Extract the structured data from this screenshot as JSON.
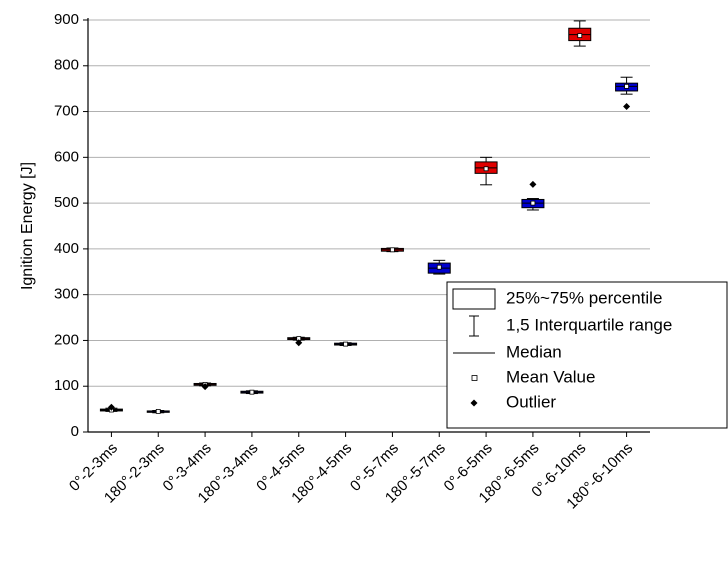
{
  "chart_data": {
    "type": "box",
    "y_label": "Ignition Energy [J]",
    "categories": [
      "0°-2-3ms",
      "180°-2-3ms",
      "0°-3-4ms",
      "180°-3-4ms",
      "0°-4-5ms",
      "180°-4-5ms",
      "0°-5-7ms",
      "180°-5-7ms",
      "0°-6-5ms",
      "180°-6-5ms",
      "0°-6-10ms",
      "180°-6-10ms"
    ],
    "colors": [
      "#e00000",
      "#0000d0",
      "#e00000",
      "#0000d0",
      "#e00000",
      "#0000d0",
      "#e00000",
      "#0000d0",
      "#e00000",
      "#0000d0",
      "#e00000",
      "#0000d0"
    ],
    "boxes": [
      {
        "whisker_low": 45,
        "q1": 46,
        "median": 48,
        "q3": 50,
        "whisker_high": 52,
        "mean": 48,
        "outliers": [
          54
        ]
      },
      {
        "whisker_low": 42,
        "q1": 43,
        "median": 45,
        "q3": 46,
        "whisker_high": 47,
        "mean": 45,
        "outliers": []
      },
      {
        "whisker_low": 101,
        "q1": 102,
        "median": 104,
        "q3": 106,
        "whisker_high": 107,
        "mean": 104,
        "outliers": [
          99
        ]
      },
      {
        "whisker_low": 84,
        "q1": 85,
        "median": 87,
        "q3": 89,
        "whisker_high": 90,
        "mean": 87,
        "outliers": []
      },
      {
        "whisker_low": 201,
        "q1": 202,
        "median": 204,
        "q3": 206,
        "whisker_high": 207,
        "mean": 204,
        "outliers": [
          195
        ]
      },
      {
        "whisker_low": 189,
        "q1": 190,
        "median": 192,
        "q3": 194,
        "whisker_high": 195,
        "mean": 192,
        "outliers": []
      },
      {
        "whisker_low": 394,
        "q1": 395,
        "median": 398,
        "q3": 401,
        "whisker_high": 402,
        "mean": 398,
        "outliers": []
      },
      {
        "whisker_low": 345,
        "q1": 347,
        "median": 358,
        "q3": 369,
        "whisker_high": 375,
        "mean": 360,
        "outliers": []
      },
      {
        "whisker_low": 540,
        "q1": 565,
        "median": 577,
        "q3": 590,
        "whisker_high": 600,
        "mean": 575,
        "outliers": []
      },
      {
        "whisker_low": 485,
        "q1": 490,
        "median": 500,
        "q3": 508,
        "whisker_high": 510,
        "mean": 500,
        "outliers": [
          541
        ]
      },
      {
        "whisker_low": 843,
        "q1": 855,
        "median": 868,
        "q3": 882,
        "whisker_high": 898,
        "mean": 866,
        "outliers": []
      },
      {
        "whisker_low": 738,
        "q1": 745,
        "median": 755,
        "q3": 762,
        "whisker_high": 775,
        "mean": 755,
        "outliers": [
          711
        ]
      }
    ],
    "ylim": [
      0,
      900
    ],
    "yticks": [
      0,
      100,
      200,
      300,
      400,
      500,
      600,
      700,
      800,
      900
    ],
    "grid": true,
    "legend_entries": [
      "25%~75% percentile",
      "1,5 Interquartile range",
      "Median",
      "Mean Value",
      "Outlier"
    ]
  }
}
